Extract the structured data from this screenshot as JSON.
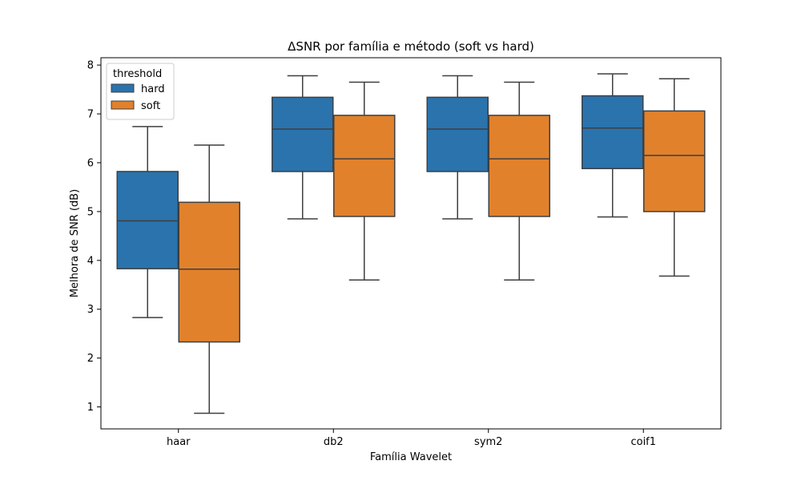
{
  "chart_data": {
    "type": "box",
    "title": "ΔSNR por família e método (soft vs hard)",
    "xlabel": "Família Wavelet",
    "ylabel": "Melhora de SNR (dB)",
    "ylim": [
      0.55,
      8.15
    ],
    "yticks": [
      1,
      2,
      3,
      4,
      5,
      6,
      7,
      8
    ],
    "categories": [
      "haar",
      "db2",
      "sym2",
      "coif1"
    ],
    "legend": {
      "title": "threshold",
      "position": "top-left"
    },
    "grid": false,
    "series": [
      {
        "name": "hard",
        "color": "#2a73ad",
        "boxes": [
          {
            "whisker_low": 2.83,
            "q1": 3.83,
            "median": 4.81,
            "q3": 5.82,
            "whisker_high": 6.74
          },
          {
            "whisker_low": 4.85,
            "q1": 5.82,
            "median": 6.69,
            "q3": 7.34,
            "whisker_high": 7.78
          },
          {
            "whisker_low": 4.85,
            "q1": 5.82,
            "median": 6.69,
            "q3": 7.34,
            "whisker_high": 7.78
          },
          {
            "whisker_low": 4.89,
            "q1": 5.88,
            "median": 6.71,
            "q3": 7.37,
            "whisker_high": 7.82
          }
        ]
      },
      {
        "name": "soft",
        "color": "#e1812c",
        "boxes": [
          {
            "whisker_low": 0.87,
            "q1": 2.33,
            "median": 3.82,
            "q3": 5.19,
            "whisker_high": 6.36
          },
          {
            "whisker_low": 3.6,
            "q1": 4.9,
            "median": 6.08,
            "q3": 6.97,
            "whisker_high": 7.65
          },
          {
            "whisker_low": 3.6,
            "q1": 4.9,
            "median": 6.08,
            "q3": 6.97,
            "whisker_high": 7.65
          },
          {
            "whisker_low": 3.68,
            "q1": 5.0,
            "median": 6.15,
            "q3": 7.06,
            "whisker_high": 7.72
          }
        ]
      }
    ]
  }
}
